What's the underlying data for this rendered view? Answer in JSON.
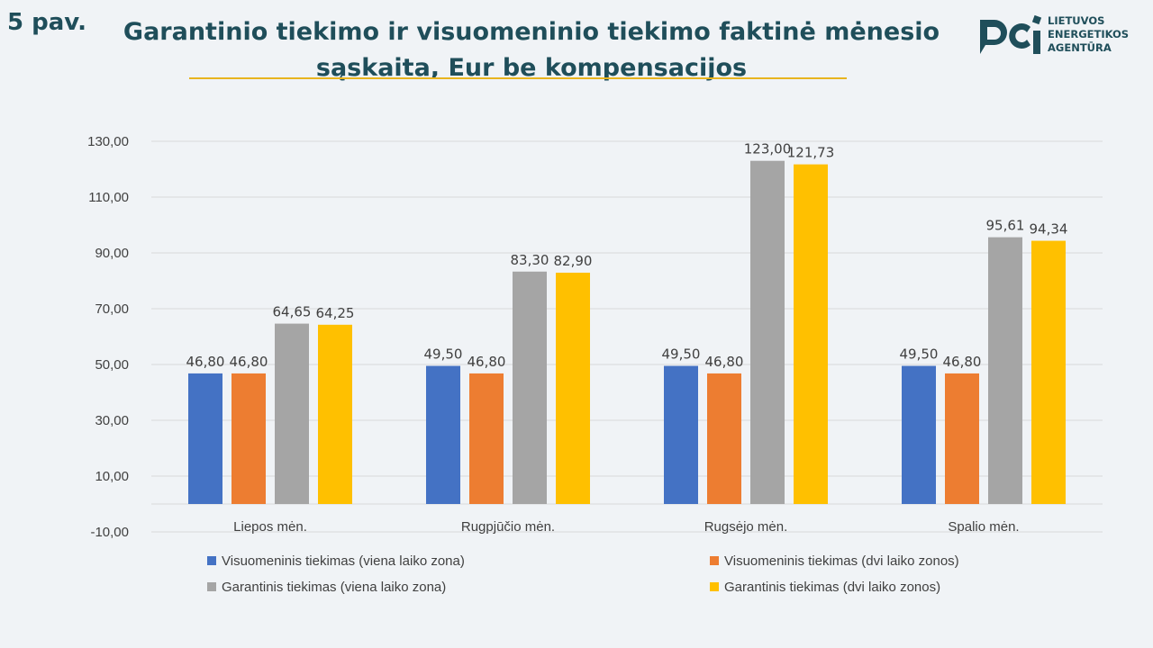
{
  "figure_label": "5 pav.",
  "title_line1": "Garantinio tiekimo ir visuomeninio tiekimo faktinė mėnesio",
  "title_line2": "sąskaita, Eur be kompensacijos",
  "logo": {
    "name": "lietuvos-energetikos-agentura-logo",
    "text_lines": [
      "LIETUVOS",
      "ENERGETIKOS",
      "AGENTŪRA"
    ],
    "color": "#1f4e5a"
  },
  "chart_data": {
    "type": "bar",
    "title": "Garantinio tiekimo ir visuomeninio tiekimo faktinė mėnesio sąskaita, Eur be kompensacijos",
    "categories": [
      "Liepos mėn.",
      "Rugpjūčio mėn.",
      "Rugsėjo mėn.",
      "Spalio mėn."
    ],
    "series": [
      {
        "name": "Visuomeninis tiekimas (viena laiko zona)",
        "color": "#4472c4",
        "values": [
          46.8,
          49.5,
          49.5,
          49.5
        ],
        "labels": [
          "46,80",
          "49,50",
          "49,50",
          "49,50"
        ]
      },
      {
        "name": "Visuomeninis tiekimas (dvi laiko zonos)",
        "color": "#ed7d31",
        "values": [
          46.8,
          46.8,
          46.8,
          46.8
        ],
        "labels": [
          "46,80",
          "46,80",
          "46,80",
          "46,80"
        ]
      },
      {
        "name": "Garantinis tiekimas (viena laiko zona)",
        "color": "#a5a5a5",
        "values": [
          64.65,
          83.3,
          123.0,
          95.61
        ],
        "labels": [
          "64,65",
          "83,30",
          "123,00",
          "95,61"
        ]
      },
      {
        "name": "Garantinis tiekimas (dvi laiko zonos)",
        "color": "#ffc000",
        "values": [
          64.25,
          82.9,
          121.73,
          94.34
        ],
        "labels": [
          "64,25",
          "82,90",
          "121,73",
          "94,34"
        ]
      }
    ],
    "yticks": [
      130,
      110,
      90,
      70,
      50,
      30,
      10,
      -10
    ],
    "ytick_labels": [
      "130,00",
      "110,00",
      "90,00",
      "70,00",
      "50,00",
      "30,00",
      "10,00",
      "-10,00"
    ],
    "ylim": [
      -10,
      130
    ],
    "grid": true,
    "legend_position": "bottom",
    "xlabel": "",
    "ylabel": ""
  },
  "colors": {
    "title": "#1f4e5a",
    "accent_underline": "#e8b41e",
    "background": "#f0f3f6",
    "gridline": "#d9d9d9"
  }
}
